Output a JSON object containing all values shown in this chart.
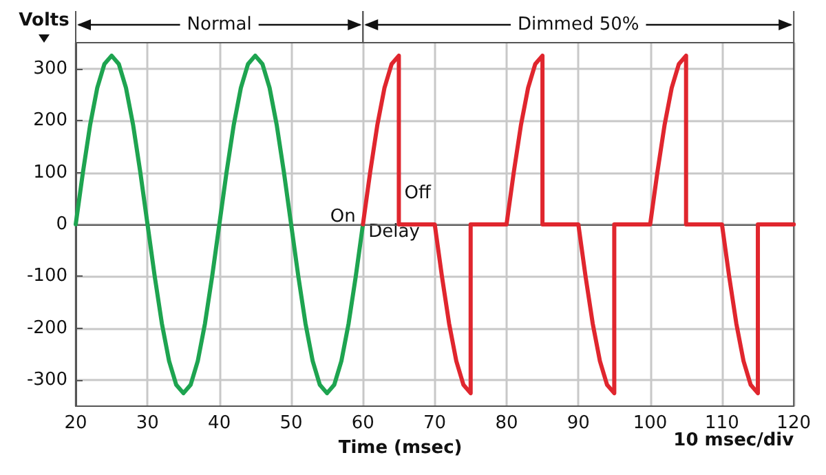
{
  "chart_data": {
    "type": "line",
    "xlabel": "Time (msec)",
    "ylabel": "Volts",
    "xlim": [
      20,
      120
    ],
    "xticks": [
      20,
      30,
      40,
      50,
      60,
      70,
      80,
      90,
      100,
      110,
      120
    ],
    "ylim": [
      -350,
      350
    ],
    "yticks": [
      -300,
      -200,
      -100,
      0,
      100,
      200,
      300
    ],
    "grid": true,
    "marker": "none",
    "line_style": "solid",
    "series": [
      {
        "color": "#1ea450",
        "x": [
          20,
          21,
          22,
          23,
          24,
          25,
          26,
          27,
          28,
          29,
          30,
          31,
          32,
          33,
          34,
          35,
          36,
          37,
          38,
          39,
          40,
          41,
          42,
          43,
          44,
          45,
          46,
          47,
          48,
          49,
          50,
          51,
          52,
          53,
          54,
          55,
          56,
          57,
          58,
          59,
          60
        ],
        "values": [
          0,
          100,
          191,
          263,
          309,
          325,
          309,
          263,
          191,
          100,
          0,
          -100,
          -191,
          -263,
          -309,
          -325,
          -309,
          -263,
          -191,
          -100,
          0,
          100,
          191,
          263,
          309,
          325,
          309,
          263,
          191,
          100,
          0,
          -100,
          -191,
          -263,
          -309,
          -325,
          -309,
          -263,
          -191,
          -100,
          0
        ]
      },
      {
        "color": "#e0262e",
        "x": [
          60,
          61,
          62,
          63,
          64,
          65,
          65,
          70,
          71,
          72,
          73,
          74,
          75,
          75,
          80,
          81,
          82,
          83,
          84,
          85,
          85,
          90,
          91,
          92,
          93,
          94,
          95,
          95,
          100,
          101,
          102,
          103,
          104,
          105,
          105,
          110,
          111,
          112,
          113,
          114,
          115,
          115,
          120
        ],
        "values": [
          0,
          100,
          191,
          263,
          309,
          325,
          0,
          0,
          -100,
          -191,
          -263,
          -309,
          -325,
          0,
          0,
          100,
          191,
          263,
          309,
          325,
          0,
          0,
          -100,
          -191,
          -263,
          -309,
          -325,
          0,
          0,
          100,
          191,
          263,
          309,
          325,
          0,
          0,
          -100,
          -191,
          -263,
          -309,
          -325,
          0,
          0
        ]
      }
    ],
    "annotations": [
      "Normal",
      "Dimmed 50%",
      {
        "text": "On",
        "x": 59,
        "y": 15
      },
      {
        "text": "Off",
        "x": 65,
        "y": 60
      },
      {
        "text": "Delay",
        "x": 60,
        "y": -15
      },
      "10 msec/div"
    ]
  }
}
